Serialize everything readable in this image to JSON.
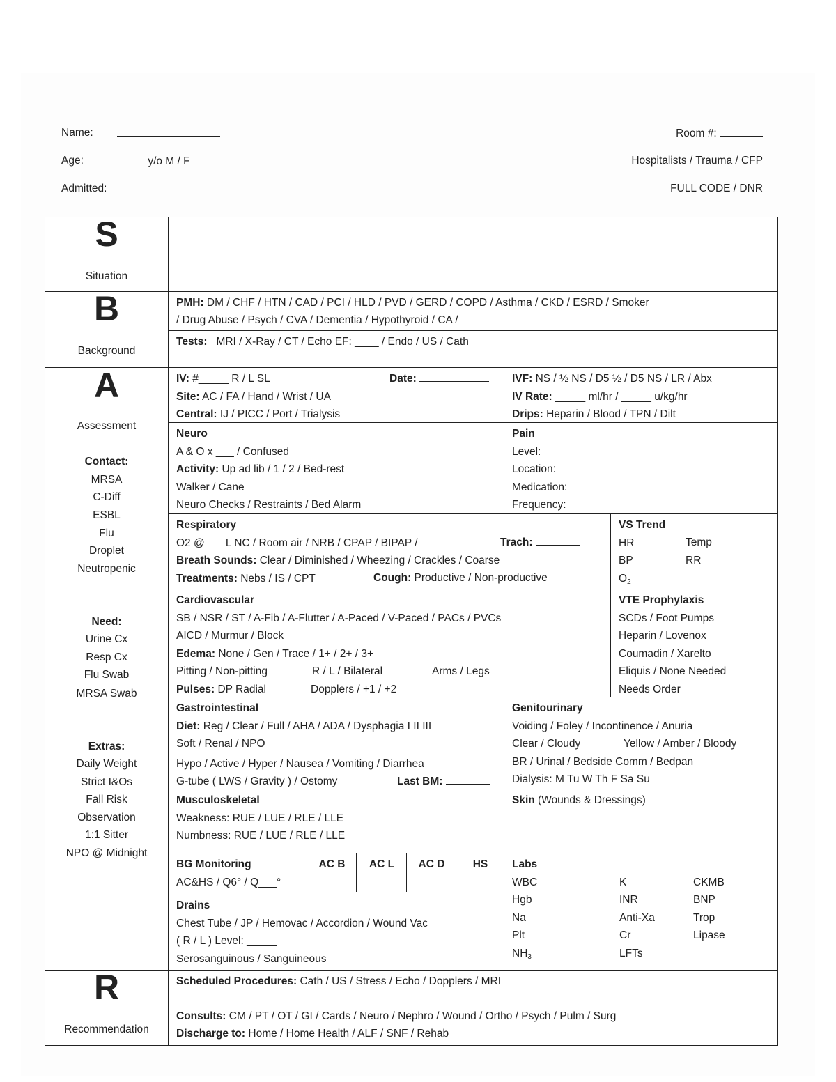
{
  "header": {
    "name_label": "Name:",
    "age_label": "Age:",
    "age_suffix": "y/o  M  /  F",
    "admitted_label": "Admitted:",
    "room_label": "Room #:",
    "service": "Hospitalists  /  Trauma  /  CFP",
    "code_status": "FULL CODE  /  DNR"
  },
  "left": {
    "s_letter": "S",
    "s_word": "Situation",
    "b_letter": "B",
    "b_word": "Background",
    "a_letter": "A",
    "a_word": "Assessment",
    "contact_title": "Contact:",
    "contact": [
      "MRSA",
      "C-Diff",
      "ESBL",
      "Flu",
      "Droplet",
      "Neutropenic"
    ],
    "need_title": "Need:",
    "need": [
      "Urine Cx",
      "Resp Cx",
      "Flu Swab",
      "MRSA Swab"
    ],
    "extras_title": "Extras:",
    "extras": [
      "Daily Weight",
      "Strict I&Os",
      "Fall Risk",
      "Observation",
      "1:1 Sitter",
      "NPO @ Midnight"
    ],
    "r_letter": "R",
    "r_word": "Recommendation"
  },
  "background": {
    "pmh_label": "PMH:",
    "pmh_line1": "DM  /  CHF  /  HTN  /  CAD  /  PCI  /  HLD  /  PVD  /  GERD  /  COPD  /  Asthma  /  CKD  /  ESRD  /  Smoker",
    "pmh_line2": "/  Drug Abuse  /  Psych  /  CVA  /  Dementia  /  Hypothyroid  /  CA  /",
    "tests_label": "Tests:",
    "tests": "MRI   /   X-Ray   /   CT   /   Echo EF: ____   /   Endo   /   US   /   Cath"
  },
  "iv": {
    "iv_label": "IV:",
    "iv_text": "#_____  R / L    SL",
    "date_label": "Date:",
    "site_label": "Site:",
    "site": "AC  /  FA  /  Hand  /  Wrist  /  UA",
    "central_label": "Central:",
    "central": "IJ  /  PICC  /  Port  /  Trialysis",
    "ivf_label": "IVF:",
    "ivf": "NS  /  ½ NS  /  D5 ½  /  D5 NS  /  LR  /  Abx",
    "rate_label": "IV Rate:",
    "rate": "_____  ml/hr    /    _____ u/kg/hr",
    "drips_label": "Drips:",
    "drips": "Heparin  /  Blood  /  TPN  /  Dilt"
  },
  "neuro": {
    "title": "Neuro",
    "aox": "A & O x  ___   /  Confused",
    "activity_label": "Activity:",
    "activity": "Up ad lib  /  1  /  2  /  Bed-rest",
    "walker": "Walker  /  Cane",
    "checks": "Neuro Checks  /  Restraints  /  Bed Alarm"
  },
  "pain": {
    "title": "Pain",
    "items": [
      "Level:",
      "Location:",
      "Medication:",
      "Frequency:"
    ]
  },
  "resp": {
    "title": "Respiratory",
    "o2": "O2 @ ___L  NC  /  Room air  /  NRB  /  CPAP  /  BIPAP  /",
    "trach_label": "Trach:",
    "breath_label": "Breath Sounds:",
    "breath": "Clear  /  Diminished  /  Wheezing  /  Crackles  /  Coarse",
    "treat_label": "Treatments:",
    "treat": "Nebs  /  IS  /  CPT",
    "cough_label": "Cough:",
    "cough": "Productive  /  Non-productive"
  },
  "vs": {
    "title": "VS Trend",
    "hr": "HR",
    "temp": "Temp",
    "bp": "BP",
    "rr": "RR",
    "o2": "O",
    "o2_sub": "2"
  },
  "cardio": {
    "title": "Cardiovascular",
    "rhythm": "SB  /  NSR  /  ST  /  A-Fib  /  A-Flutter  /  A-Paced  /  V-Paced  /  PACs  /  PVCs",
    "aicd": "AICD  /  Murmur  /  Block",
    "edema_label": "Edema:",
    "edema": "None  /  Gen  /  Trace  /  1+  /  2+  /  3+",
    "pitting": "Pitting  /  Non-pitting",
    "side": "R  /  L  /  Bilateral",
    "limbs": "Arms  /  Legs",
    "pulses_label": "Pulses:",
    "pulses": "DP  Radial",
    "dopplers": "Dopplers  /  +1  /  +2"
  },
  "vte": {
    "title": "VTE Prophylaxis",
    "items": [
      "SCDs  /  Foot Pumps",
      "Heparin  /  Lovenox",
      "Coumadin  /  Xarelto",
      "Eliquis  /  None Needed",
      "Needs Order"
    ]
  },
  "gi": {
    "title": "Gastrointestinal",
    "diet_label": "Diet:",
    "diet": "Reg  /  Clear  /  Full  /  AHA  /  ADA  / Dysphagia  I  II  III",
    "soft": "Soft  /  Renal  /  NPO",
    "bowel": "Hypo  /  Active  /  Hyper  /  Nausea  /  Vomiting  /  Diarrhea",
    "gtube": "G-tube  (  LWS  /  Gravity  )  /  Ostomy",
    "lastbm_label": "Last BM:"
  },
  "gu": {
    "title": "Genitourinary",
    "voiding": "Voiding  /  Foley  /  Incontinence  /  Anuria",
    "clear": "Clear  /  Cloudy",
    "color": "Yellow  /  Amber  /  Bloody",
    "br": "BR  /  Urinal  /  Bedside Comm  /  Bedpan",
    "dialysis": "Dialysis:  M    Tu    W    Th    F    Sa    Su"
  },
  "msk": {
    "title": "Musculoskeletal",
    "weakness": "Weakness:  RUE  /  LUE  /  RLE  /  LLE",
    "numbness": "Numbness:  RUE  /  LUE  /  RLE  /  LLE"
  },
  "skin": {
    "title": "Skin",
    "subtitle": "(Wounds & Dressings)"
  },
  "bg": {
    "title": "BG Monitoring",
    "freq": "AC&HS  /  Q6°  /  Q___°",
    "cols": [
      "AC B",
      "AC L",
      "AC D",
      "HS"
    ]
  },
  "drains": {
    "title": "Drains",
    "types": "Chest Tube  /  JP  /  Hemovac  /  Accordion  /  Wound Vac",
    "level": "(  R  /  L  )  Level:  _____",
    "fluid": "Serosanguinous  /  Sanguineous"
  },
  "labs": {
    "title": "Labs",
    "col1": [
      "WBC",
      "Hgb",
      "Na",
      "Plt",
      "NH"
    ],
    "nh_sub": "3",
    "col2": [
      "K",
      "INR",
      "Anti-Xa",
      "Cr",
      "LFTs"
    ],
    "col3": [
      "CKMB",
      "BNP",
      "Trop",
      "Lipase"
    ]
  },
  "rec": {
    "sched_label": "Scheduled Procedures:",
    "sched": "Cath  /  US  /  Stress  /  Echo  /  Dopplers  /  MRI",
    "consults_label": "Consults:",
    "consults": "CM  /  PT  /  OT  /  GI  /  Cards  /  Neuro  /  Nephro  /  Wound  /  Ortho  /  Psych  /  Pulm  /  Surg",
    "discharge_label": "Discharge to:",
    "discharge": "Home  /  Home Health  /  ALF  /  SNF  /  Rehab"
  }
}
